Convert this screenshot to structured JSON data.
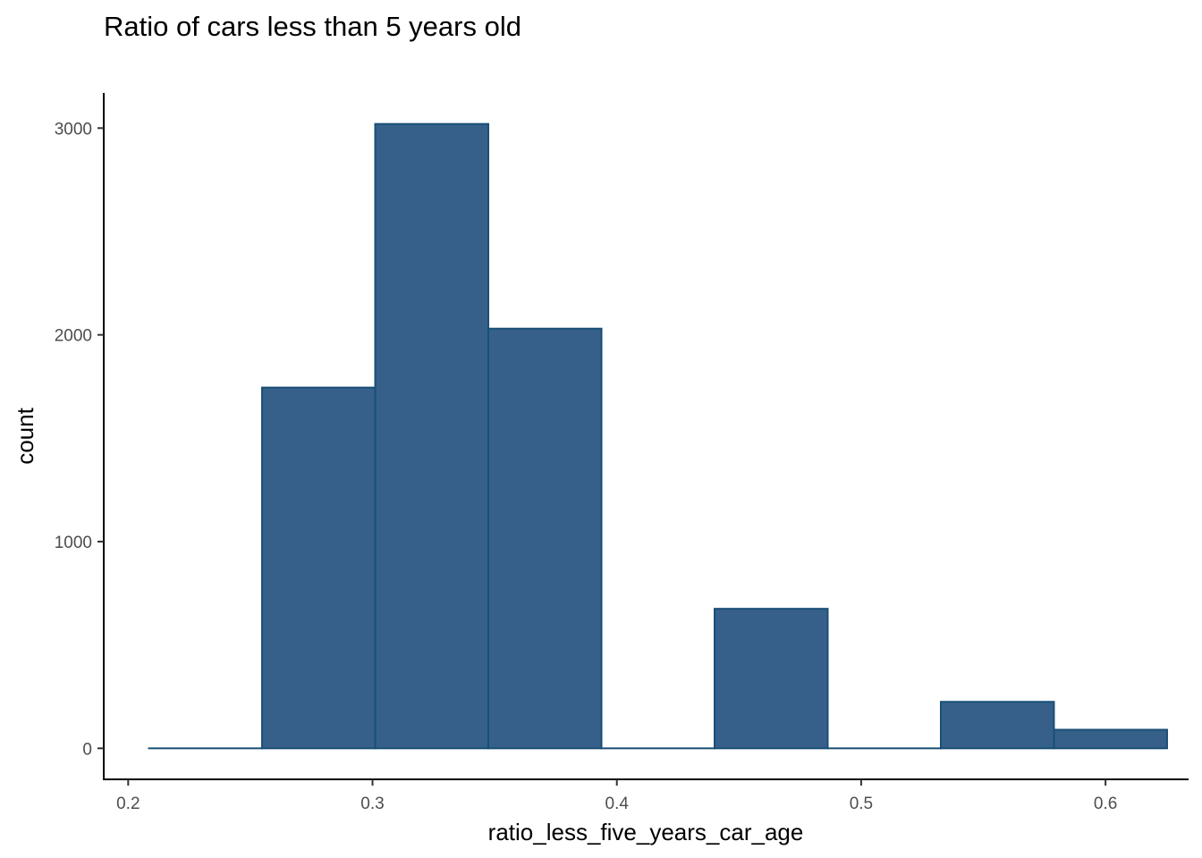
{
  "chart_data": {
    "type": "bar",
    "title": "Ratio of cars less than 5 years old",
    "xlabel": "ratio_less_five_years_car_age",
    "ylabel": "count",
    "xlim": [
      0.19,
      0.634
    ],
    "ylim": [
      -150,
      3170
    ],
    "x_ticks": [
      0.2,
      0.3,
      0.4,
      0.5,
      0.6
    ],
    "x_tick_labels": [
      "0.2",
      "0.3",
      "0.4",
      "0.5",
      "0.6"
    ],
    "y_ticks": [
      0,
      1000,
      2000,
      3000
    ],
    "y_tick_labels": [
      "0",
      "1000",
      "2000",
      "3000"
    ],
    "grid": false,
    "legend": "none",
    "fill_color": "#36608a",
    "edge_color": "#194f75",
    "bins": [
      {
        "x0": 0.2085,
        "x1": 0.2548,
        "count": 0
      },
      {
        "x0": 0.2548,
        "x1": 0.3011,
        "count": 1745
      },
      {
        "x0": 0.3011,
        "x1": 0.3474,
        "count": 3020
      },
      {
        "x0": 0.3474,
        "x1": 0.3937,
        "count": 2030
      },
      {
        "x0": 0.3937,
        "x1": 0.44,
        "count": 0
      },
      {
        "x0": 0.44,
        "x1": 0.4863,
        "count": 675
      },
      {
        "x0": 0.4863,
        "x1": 0.5326,
        "count": 0
      },
      {
        "x0": 0.5326,
        "x1": 0.5789,
        "count": 225
      },
      {
        "x0": 0.5789,
        "x1": 0.6252,
        "count": 90
      }
    ]
  }
}
